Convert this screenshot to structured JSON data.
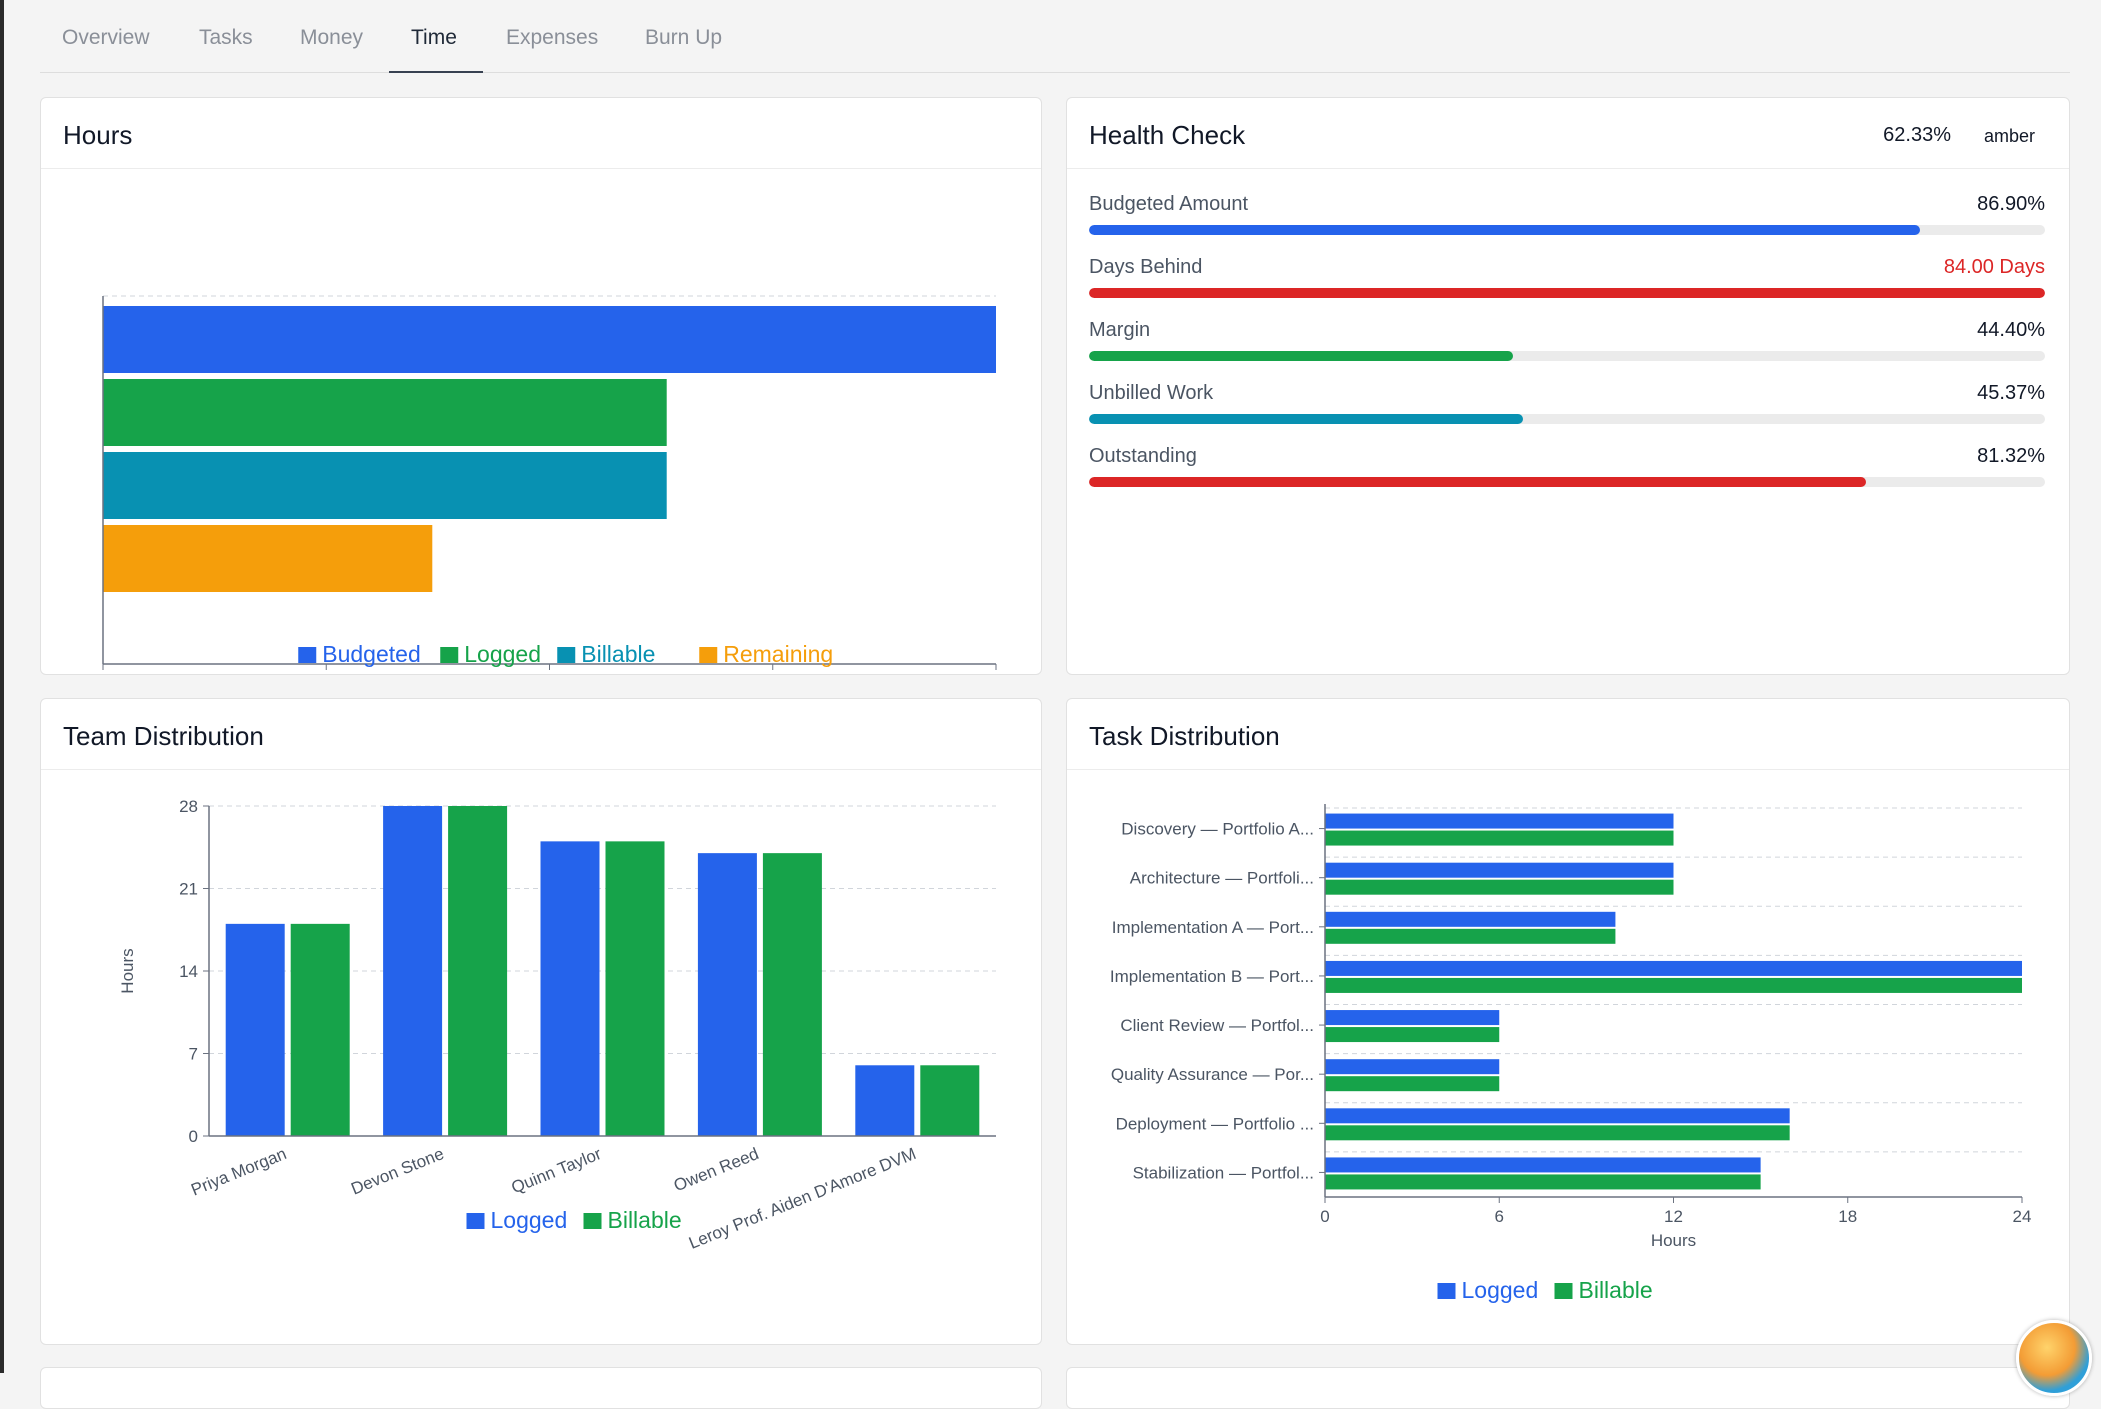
{
  "tabs": [
    {
      "label": "Overview",
      "active": false
    },
    {
      "label": "Tasks",
      "active": false
    },
    {
      "label": "Money",
      "active": false
    },
    {
      "label": "Time",
      "active": true
    },
    {
      "label": "Expenses",
      "active": false
    },
    {
      "label": "Burn Up",
      "active": false
    }
  ],
  "colors": {
    "blue": "#2563eb",
    "green": "#16a34a",
    "teal": "#0891b2",
    "orange": "#f59e0b",
    "red": "#dc2626",
    "grid": "#d1d5db",
    "axis": "#6b7280"
  },
  "hours_card": {
    "title": "Hours"
  },
  "health_check": {
    "title": "Health Check",
    "score": "62.33%",
    "status": "amber",
    "items": [
      {
        "label": "Budgeted Amount",
        "value": "86.90%",
        "fraction": 0.869,
        "color": "#2563eb",
        "value_color": "#111827"
      },
      {
        "label": "Days Behind",
        "value": "84.00 Days",
        "fraction": 1.0,
        "color": "#dc2626",
        "value_color": "#dc2626"
      },
      {
        "label": "Margin",
        "value": "44.40%",
        "fraction": 0.444,
        "color": "#16a34a",
        "value_color": "#111827"
      },
      {
        "label": "Unbilled Work",
        "value": "45.37%",
        "fraction": 0.4537,
        "color": "#0891b2",
        "value_color": "#111827"
      },
      {
        "label": "Outstanding",
        "value": "81.32%",
        "fraction": 0.8132,
        "color": "#dc2626",
        "value_color": "#111827"
      }
    ]
  },
  "team_card": {
    "title": "Team Distribution"
  },
  "task_card": {
    "title": "Task Distribution"
  },
  "chart_data": [
    {
      "id": "hours",
      "type": "bar",
      "orientation": "horizontal",
      "series": [
        {
          "name": "Budgeted",
          "value": 160,
          "color": "#2563eb"
        },
        {
          "name": "Logged",
          "value": 101,
          "color": "#16a34a"
        },
        {
          "name": "Billable",
          "value": 101,
          "color": "#0891b2"
        },
        {
          "name": "Remaining",
          "value": 59,
          "color": "#f59e0b"
        }
      ],
      "xlim": [
        0,
        160
      ],
      "xticks": [
        "0",
        "40",
        "80",
        "120",
        "160"
      ],
      "grid": true,
      "legend": "bottom"
    },
    {
      "id": "team",
      "type": "bar",
      "categories": [
        "Priya Morgan",
        "Devon Stone",
        "Quinn Taylor",
        "Owen Reed",
        "Leroy Prof. Aiden D'Amore DVM"
      ],
      "series": [
        {
          "name": "Logged",
          "values": [
            18,
            28,
            25,
            24,
            6
          ],
          "color": "#2563eb"
        },
        {
          "name": "Billable",
          "values": [
            18,
            28,
            25,
            24,
            6
          ],
          "color": "#16a34a"
        }
      ],
      "ylabel": "Hours",
      "ylim": [
        0,
        28
      ],
      "yticks": [
        "0",
        "7",
        "14",
        "21",
        "28"
      ],
      "grid": true,
      "legend": "bottom"
    },
    {
      "id": "task",
      "type": "bar",
      "orientation": "horizontal",
      "categories": [
        "Discovery — Portfolio A...",
        "Architecture — Portfoli...",
        "Implementation A — Port...",
        "Implementation B — Port...",
        "Client Review — Portfol...",
        "Quality Assurance — Por...",
        "Deployment — Portfolio ...",
        "Stabilization — Portfol..."
      ],
      "series": [
        {
          "name": "Logged",
          "values": [
            12,
            12,
            10,
            24,
            6,
            6,
            16,
            15
          ],
          "color": "#2563eb"
        },
        {
          "name": "Billable",
          "values": [
            12,
            12,
            10,
            24,
            6,
            6,
            16,
            15
          ],
          "color": "#16a34a"
        }
      ],
      "xlabel": "Hours",
      "xlim": [
        0,
        24
      ],
      "xticks": [
        "0",
        "6",
        "12",
        "18",
        "24"
      ],
      "grid": true,
      "legend": "bottom"
    }
  ]
}
